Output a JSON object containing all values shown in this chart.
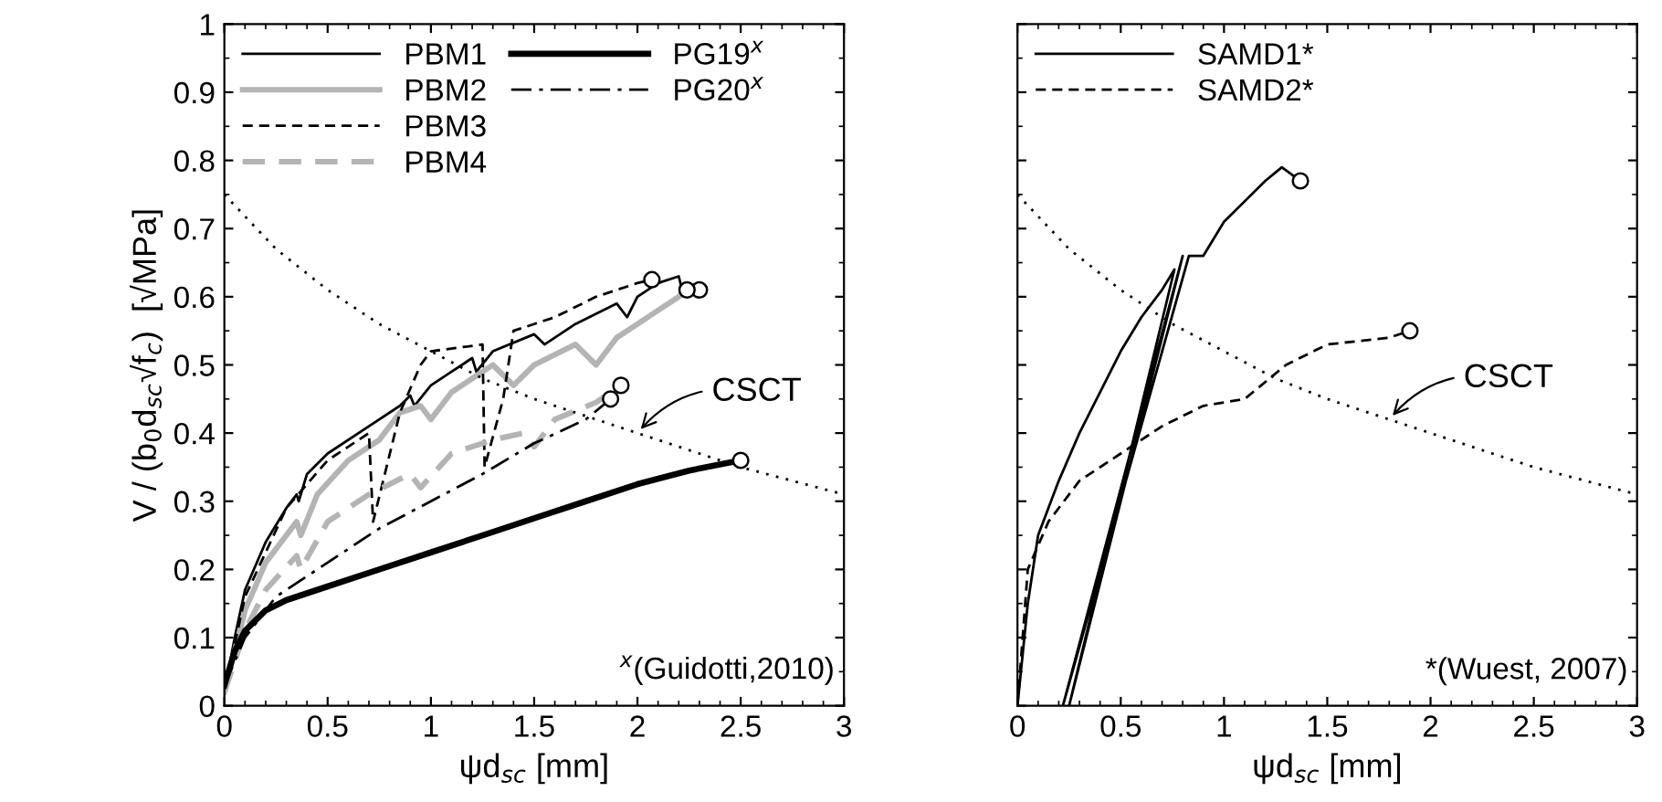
{
  "chart_data": [
    {
      "type": "line",
      "xlabel": "ψd$_{sc}$ [mm]",
      "ylabel": "V / (b$_{0}$d$_{sc}$√f$_{c}$)  [√MPa]",
      "xlim": [
        0,
        3
      ],
      "ylim": [
        0,
        1
      ],
      "xticks": [
        0,
        0.5,
        1,
        1.5,
        2,
        2.5,
        3
      ],
      "yticks": [
        0,
        0.1,
        0.2,
        0.3,
        0.4,
        0.5,
        0.6,
        0.7,
        0.8,
        0.9,
        1
      ],
      "grid": false,
      "legend": "top left",
      "annotations": [
        {
          "text": "CSCT",
          "x": 2.0,
          "y": 0.4
        },
        "$^{x}$(Guidotti,2010)"
      ],
      "series": [
        {
          "name": "PBM1",
          "color": "#000000",
          "line_style": "solid",
          "x": [
            0,
            0.05,
            0.1,
            0.2,
            0.3,
            0.35,
            0.36,
            0.4,
            0.5,
            0.7,
            0.85,
            0.9,
            0.92,
            1.0,
            1.1,
            1.2,
            1.22,
            1.3,
            1.5,
            1.55,
            1.7,
            1.9,
            1.95,
            2.0,
            2.1,
            2.2,
            2.22,
            2.3
          ],
          "values": [
            0.02,
            0.1,
            0.17,
            0.24,
            0.29,
            0.31,
            0.3,
            0.34,
            0.37,
            0.41,
            0.44,
            0.455,
            0.44,
            0.47,
            0.49,
            0.51,
            0.49,
            0.52,
            0.545,
            0.53,
            0.56,
            0.59,
            0.57,
            0.6,
            0.62,
            0.63,
            0.605,
            0.61
          ]
        },
        {
          "name": "PBM2",
          "color": "#b4b4b4",
          "line_style": "solid",
          "x": [
            0,
            0.1,
            0.2,
            0.35,
            0.37,
            0.45,
            0.6,
            0.75,
            0.85,
            0.95,
            1.0,
            1.1,
            1.2,
            1.3,
            1.4,
            1.5,
            1.7,
            1.8,
            1.9,
            2.0,
            2.1,
            2.2,
            2.24
          ],
          "values": [
            0.02,
            0.14,
            0.21,
            0.27,
            0.25,
            0.31,
            0.36,
            0.39,
            0.43,
            0.44,
            0.42,
            0.46,
            0.48,
            0.5,
            0.47,
            0.5,
            0.53,
            0.5,
            0.54,
            0.56,
            0.58,
            0.6,
            0.61
          ]
        },
        {
          "name": "PBM3",
          "color": "#000000",
          "line_style": "dashed",
          "x": [
            0,
            0.1,
            0.3,
            0.5,
            0.7,
            0.72,
            0.85,
            0.95,
            1.0,
            1.25,
            1.26,
            1.35,
            1.4,
            1.6,
            1.8,
            2.0,
            2.07
          ],
          "values": [
            0.02,
            0.16,
            0.29,
            0.36,
            0.4,
            0.27,
            0.43,
            0.5,
            0.52,
            0.53,
            0.35,
            0.45,
            0.55,
            0.57,
            0.6,
            0.62,
            0.625
          ]
        },
        {
          "name": "PBM4",
          "color": "#b4b4b4",
          "line_style": "dashed",
          "x": [
            0,
            0.1,
            0.2,
            0.35,
            0.37,
            0.5,
            0.7,
            0.9,
            0.95,
            1.1,
            1.3,
            1.45,
            1.5,
            1.6,
            1.8,
            1.92
          ],
          "values": [
            0.02,
            0.11,
            0.17,
            0.22,
            0.2,
            0.27,
            0.31,
            0.34,
            0.32,
            0.37,
            0.39,
            0.4,
            0.38,
            0.42,
            0.445,
            0.47
          ]
        },
        {
          "name": "PG19$^{x}$",
          "color": "#000000",
          "line_style": "solid",
          "x": [
            0,
            0.05,
            0.1,
            0.2,
            0.3,
            0.5,
            0.75,
            1.0,
            1.25,
            1.5,
            1.75,
            2.0,
            2.25,
            2.5
          ],
          "values": [
            0.03,
            0.08,
            0.11,
            0.14,
            0.155,
            0.175,
            0.2,
            0.225,
            0.25,
            0.275,
            0.3,
            0.325,
            0.345,
            0.36
          ]
        },
        {
          "name": "PG20$^{x}$",
          "color": "#000000",
          "line_style": "dashdot",
          "x": [
            0,
            0.1,
            0.25,
            0.5,
            0.75,
            1.0,
            1.25,
            1.5,
            1.75,
            1.87
          ],
          "values": [
            0.03,
            0.1,
            0.16,
            0.21,
            0.26,
            0.3,
            0.34,
            0.385,
            0.42,
            0.45
          ]
        },
        {
          "color": "#000000",
          "line_style": "dotted",
          "x": [
            0,
            0.25,
            0.5,
            0.75,
            1.0,
            1.25,
            1.5,
            2.0,
            2.5,
            3.0
          ],
          "values": [
            0.75,
            0.67,
            0.61,
            0.56,
            0.52,
            0.48,
            0.45,
            0.4,
            0.35,
            0.31
          ]
        },
        {
          "type": "scatter",
          "marker": "circle",
          "color": "#000000",
          "x": [
            2.3,
            2.24,
            2.07,
            1.92,
            2.5,
            1.87
          ],
          "values": [
            0.61,
            0.61,
            0.625,
            0.47,
            0.36,
            0.45
          ]
        }
      ]
    },
    {
      "type": "line",
      "xlabel": "ψd$_{sc}$ [mm]",
      "xlim": [
        0,
        3
      ],
      "ylim": [
        0,
        1
      ],
      "xticks": [
        0,
        0.5,
        1,
        1.5,
        2,
        2.5,
        3
      ],
      "yticks": [
        0,
        0.1,
        0.2,
        0.3,
        0.4,
        0.5,
        0.6,
        0.7,
        0.8,
        0.9,
        1
      ],
      "tick_labels": "x",
      "grid": false,
      "legend": "top left",
      "annotations": [
        {
          "text": "CSCT",
          "x": 1.8,
          "y": 0.42
        },
        "*(Wuest, 2007)"
      ],
      "series": [
        {
          "name": "SAMD1*",
          "color": "#000000",
          "line_style": "solid",
          "x": [
            0,
            0.05,
            0.1,
            0.2,
            0.3,
            0.4,
            0.5,
            0.6,
            0.7,
            0.76,
            0.25,
            0.8,
            0.22,
            0.83,
            0.9,
            1.0,
            1.1,
            1.2,
            1.28,
            1.37
          ],
          "values": [
            0,
            0.15,
            0.25,
            0.33,
            0.4,
            0.46,
            0.52,
            0.57,
            0.61,
            0.64,
            0,
            0.66,
            0,
            0.66,
            0.66,
            0.71,
            0.74,
            0.77,
            0.79,
            0.77
          ]
        },
        {
          "name": "SAMD2*",
          "color": "#000000",
          "line_style": "dashed",
          "x": [
            0,
            0.05,
            0.15,
            0.3,
            0.5,
            0.7,
            0.9,
            1.1,
            1.3,
            1.5,
            1.8,
            1.9
          ],
          "values": [
            0,
            0.2,
            0.27,
            0.33,
            0.37,
            0.41,
            0.44,
            0.45,
            0.5,
            0.53,
            0.54,
            0.55
          ]
        },
        {
          "color": "#000000",
          "line_style": "dotted",
          "x": [
            0,
            0.25,
            0.5,
            0.75,
            1.0,
            1.25,
            1.5,
            2.0,
            2.5,
            3.0
          ],
          "values": [
            0.75,
            0.67,
            0.61,
            0.56,
            0.52,
            0.48,
            0.45,
            0.4,
            0.35,
            0.31
          ]
        },
        {
          "type": "scatter",
          "marker": "circle",
          "color": "#000000",
          "x": [
            1.37,
            1.9
          ],
          "values": [
            0.77,
            0.55
          ]
        }
      ]
    }
  ]
}
